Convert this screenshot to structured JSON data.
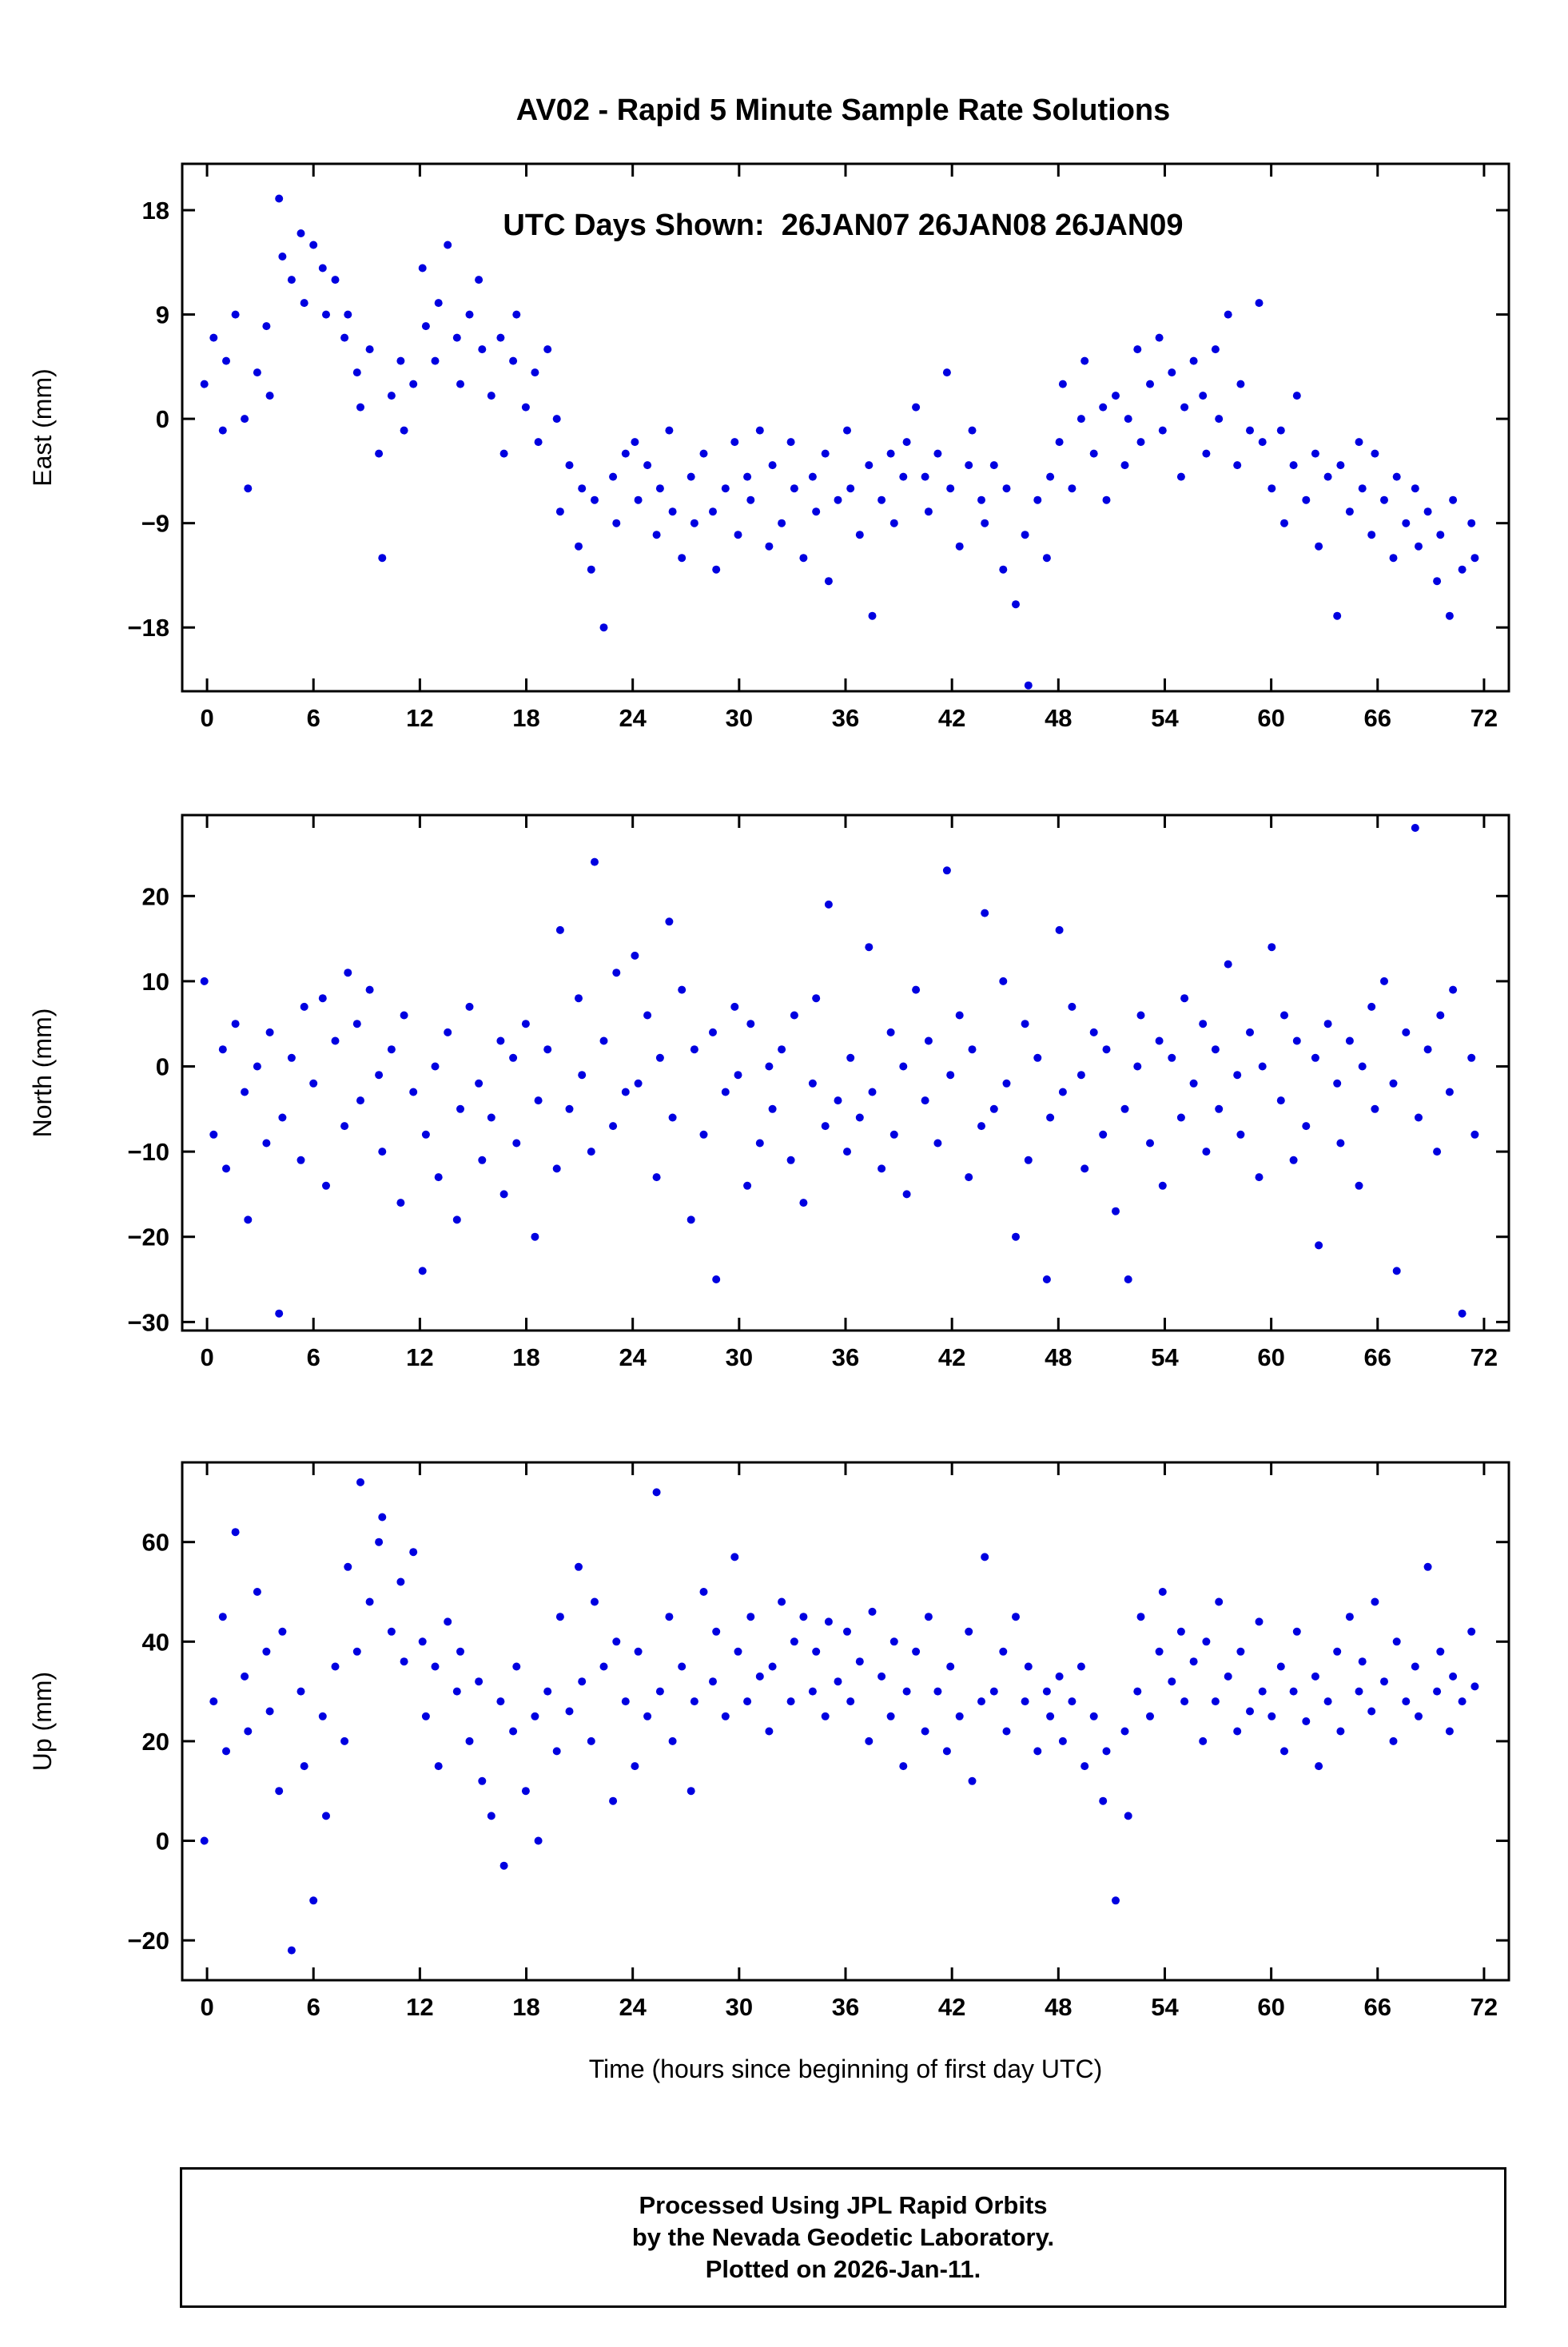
{
  "title": {
    "line1": "AV02 - Rapid 5 Minute Sample Rate Solutions",
    "line2": "UTC Days Shown:  26JAN07 26JAN08 26JAN09"
  },
  "footer": {
    "line1": "Processed Using JPL Rapid Orbits",
    "line2": "by the Nevada Geodetic Laboratory.",
    "line3": "Plotted on 2026-Jan-11."
  },
  "style": {
    "point_color": "#0000e0",
    "frame_color": "#000000"
  },
  "x_axis": {
    "label": "Time (hours since beginning of first day UTC)",
    "ticks": [
      0,
      6,
      12,
      18,
      24,
      30,
      36,
      42,
      48,
      54,
      60,
      66,
      72
    ],
    "lim": [
      -1.4,
      73.4
    ]
  },
  "chart_data": [
    {
      "type": "scatter",
      "series_name": "East",
      "ylabel": "East (mm)",
      "ylim": [
        -23.5,
        22
      ],
      "yticks": [
        -18,
        -9,
        0,
        9,
        18
      ],
      "x_start": 0,
      "x_step": 0.4,
      "y": [
        3,
        7,
        -1,
        5,
        9,
        0,
        -6,
        4,
        8,
        2,
        19,
        14,
        12,
        16,
        10,
        15,
        13,
        9,
        12,
        7,
        9,
        4,
        1,
        6,
        -3,
        -12,
        2,
        5,
        -1,
        3,
        13,
        8,
        5,
        10,
        15,
        7,
        3,
        9,
        12,
        6,
        2,
        7,
        -3,
        5,
        9,
        1,
        4,
        -2,
        6,
        0,
        -8,
        -4,
        -11,
        -6,
        -13,
        -7,
        -18,
        -5,
        -9,
        -3,
        -2,
        -7,
        -4,
        -10,
        -6,
        -1,
        -8,
        -12,
        -5,
        -9,
        -3,
        -8,
        -13,
        -6,
        -2,
        -10,
        -5,
        -7,
        -1,
        -11,
        -4,
        -9,
        -2,
        -6,
        -12,
        -5,
        -8,
        -3,
        -14,
        -7,
        -1,
        -6,
        -10,
        -4,
        -17,
        -7,
        -3,
        -9,
        -5,
        -2,
        1,
        -5,
        -8,
        -3,
        4,
        -6,
        -11,
        -4,
        -1,
        -7,
        -9,
        -4,
        -13,
        -6,
        -16,
        -10,
        -23,
        -7,
        -12,
        -5,
        -2,
        3,
        -6,
        0,
        5,
        -3,
        1,
        -7,
        2,
        -4,
        0,
        6,
        -2,
        3,
        7,
        -1,
        4,
        -5,
        1,
        5,
        2,
        -3,
        6,
        0,
        9,
        -4,
        3,
        -1,
        10,
        -2,
        -6,
        -1,
        -9,
        -4,
        2,
        -7,
        -3,
        -11,
        -5,
        -17,
        -4,
        -8,
        -2,
        -6,
        -10,
        -3,
        -7,
        -12,
        -5,
        -9,
        -6,
        -11,
        -8,
        -14,
        -10,
        -17,
        -7,
        -13,
        -9,
        -12
      ]
    },
    {
      "type": "scatter",
      "series_name": "North",
      "ylabel": "North (mm)",
      "ylim": [
        -31,
        29.5
      ],
      "yticks": [
        -30,
        -20,
        -10,
        0,
        10,
        20
      ],
      "x_start": 0,
      "x_step": 0.4,
      "y": [
        10,
        -8,
        2,
        -12,
        5,
        -3,
        -18,
        0,
        -9,
        4,
        -29,
        -6,
        1,
        -11,
        7,
        -2,
        8,
        -14,
        3,
        -7,
        11,
        5,
        -4,
        9,
        -1,
        -10,
        2,
        -16,
        6,
        -3,
        -24,
        -8,
        0,
        -13,
        4,
        -18,
        -5,
        7,
        -2,
        -11,
        -6,
        3,
        -15,
        1,
        -9,
        5,
        -20,
        -4,
        2,
        -12,
        16,
        -5,
        8,
        -1,
        -10,
        24,
        3,
        -7,
        11,
        -3,
        13,
        -2,
        6,
        -13,
        1,
        17,
        -6,
        9,
        -18,
        2,
        -8,
        4,
        -25,
        -3,
        7,
        -1,
        -14,
        5,
        -9,
        0,
        -5,
        2,
        -11,
        6,
        -16,
        -2,
        8,
        -7,
        19,
        -4,
        -10,
        1,
        -6,
        14,
        -3,
        -12,
        4,
        -8,
        0,
        -15,
        9,
        -4,
        3,
        -9,
        23,
        -1,
        6,
        -13,
        2,
        -7,
        18,
        -5,
        10,
        -2,
        -20,
        5,
        -11,
        1,
        -25,
        -6,
        16,
        -3,
        7,
        -1,
        -12,
        4,
        -8,
        2,
        -17,
        -5,
        -25,
        0,
        6,
        -9,
        3,
        -14,
        1,
        -6,
        8,
        -2,
        5,
        -10,
        2,
        -5,
        12,
        -1,
        -8,
        4,
        -13,
        0,
        14,
        -4,
        6,
        -11,
        3,
        -7,
        1,
        -21,
        5,
        -2,
        -9,
        3,
        -14,
        0,
        7,
        -5,
        10,
        -2,
        -24,
        4,
        28,
        -6,
        2,
        -10,
        6,
        -3,
        9,
        -29,
        1,
        -8
      ]
    },
    {
      "type": "scatter",
      "series_name": "Up",
      "ylabel": "Up (mm)",
      "ylim": [
        -28,
        76
      ],
      "yticks": [
        -20,
        0,
        20,
        40,
        60
      ],
      "x_start": 0,
      "x_step": 0.4,
      "y": [
        0,
        28,
        45,
        18,
        62,
        33,
        22,
        50,
        38,
        26,
        10,
        42,
        -22,
        30,
        15,
        -12,
        25,
        5,
        35,
        20,
        55,
        38,
        72,
        48,
        60,
        65,
        42,
        52,
        36,
        58,
        40,
        25,
        35,
        15,
        44,
        30,
        38,
        20,
        32,
        12,
        5,
        28,
        -5,
        22,
        35,
        10,
        25,
        0,
        30,
        18,
        45,
        26,
        55,
        32,
        20,
        48,
        35,
        8,
        40,
        28,
        15,
        38,
        25,
        70,
        30,
        45,
        20,
        35,
        10,
        28,
        50,
        32,
        42,
        25,
        57,
        38,
        28,
        45,
        33,
        22,
        35,
        48,
        28,
        40,
        45,
        30,
        38,
        25,
        44,
        32,
        42,
        28,
        36,
        20,
        46,
        33,
        25,
        40,
        15,
        30,
        38,
        22,
        45,
        30,
        18,
        35,
        25,
        42,
        12,
        28,
        57,
        30,
        38,
        22,
        45,
        28,
        35,
        18,
        30,
        25,
        33,
        20,
        28,
        35,
        15,
        25,
        8,
        18,
        -12,
        22,
        5,
        30,
        45,
        25,
        38,
        50,
        32,
        42,
        28,
        36,
        20,
        40,
        28,
        48,
        33,
        22,
        38,
        26,
        44,
        30,
        25,
        35,
        18,
        30,
        42,
        24,
        33,
        15,
        28,
        38,
        22,
        45,
        30,
        36,
        26,
        48,
        32,
        20,
        40,
        28,
        35,
        25,
        55,
        30,
        38,
        22,
        33,
        28,
        42,
        31
      ]
    }
  ]
}
